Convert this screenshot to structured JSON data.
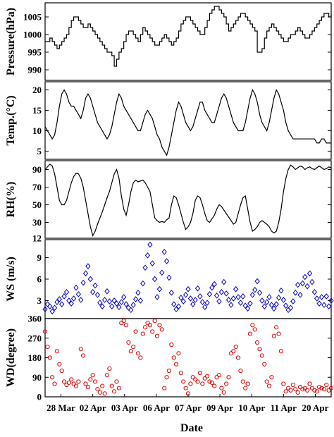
{
  "chart_data": [
    {
      "type": "line",
      "ylabel": "Pressure(hPa)",
      "ylim": [
        987,
        1009
      ],
      "yticks": [
        990,
        995,
        1000,
        1005
      ],
      "color": "#000000",
      "step": true,
      "x": [
        0,
        3,
        6,
        9,
        12,
        15,
        18,
        21,
        24,
        27,
        30,
        33,
        36,
        39,
        42,
        45,
        48,
        51,
        54,
        57,
        60,
        63,
        66,
        69,
        72,
        75,
        78,
        81,
        84,
        87,
        90,
        93,
        96,
        99,
        102,
        105,
        108,
        111,
        114,
        117,
        120,
        123,
        126,
        129,
        132,
        135,
        138,
        141,
        144,
        147,
        150,
        153,
        156,
        159,
        162,
        165,
        168,
        171,
        174,
        177,
        180,
        183,
        186,
        189,
        192,
        195,
        198,
        201,
        204,
        207,
        210,
        213,
        216,
        219,
        222,
        225,
        228,
        231,
        234,
        237,
        240,
        243,
        246,
        249,
        252,
        255,
        258,
        261,
        264,
        267,
        270,
        273,
        276,
        279,
        282,
        285,
        288,
        291,
        294,
        297,
        300,
        303,
        306,
        309,
        312,
        315,
        318,
        321,
        324,
        327,
        330,
        333,
        336,
        339,
        342,
        345,
        348,
        351,
        354,
        357,
        360
      ],
      "y": [
        998,
        998,
        999,
        998,
        997,
        996,
        997,
        998,
        999,
        1000,
        1002,
        1004,
        1005,
        1005,
        1004,
        1003,
        1002,
        1002,
        1003,
        1002,
        1001,
        1000,
        999,
        998,
        997,
        996,
        995,
        995,
        994,
        991,
        993,
        995,
        996,
        998,
        1000,
        1001,
        1001,
        1000,
        999,
        998,
        1000,
        1002,
        1001,
        1000,
        999,
        998,
        997,
        997,
        998,
        999,
        1000,
        999,
        998,
        997,
        998,
        999,
        1001,
        1003,
        1004,
        1005,
        1005,
        1004,
        1003,
        1002,
        1001,
        1000,
        1000,
        1002,
        1004,
        1006,
        1007,
        1008,
        1008,
        1007,
        1006,
        1005,
        1003,
        1001,
        1002,
        1003,
        1004,
        1005,
        1006,
        1006,
        1005,
        1004,
        1003,
        1002,
        1001,
        995,
        995,
        996,
        999,
        1001,
        1002,
        1003,
        1002,
        1001,
        1000,
        999,
        998,
        998,
        999,
        1000,
        1000,
        1001,
        1002,
        1001,
        1000,
        999,
        999,
        1000,
        1001,
        1002,
        1003,
        1004,
        1005,
        1006,
        1006,
        1005,
        1006
      ]
    },
    {
      "type": "line",
      "ylabel": "Temp.(°C)",
      "ylim": [
        3,
        22
      ],
      "yticks": [
        5,
        10,
        15,
        20
      ],
      "color": "#000000",
      "x": [
        0,
        3,
        6,
        9,
        12,
        15,
        18,
        21,
        24,
        27,
        30,
        33,
        36,
        39,
        42,
        45,
        48,
        51,
        54,
        57,
        60,
        63,
        66,
        69,
        72,
        75,
        78,
        81,
        84,
        87,
        90,
        93,
        96,
        99,
        102,
        105,
        108,
        111,
        114,
        117,
        120,
        123,
        126,
        129,
        132,
        135,
        138,
        141,
        144,
        147,
        150,
        153,
        156,
        159,
        162,
        165,
        168,
        171,
        174,
        177,
        180,
        183,
        186,
        189,
        192,
        195,
        198,
        201,
        204,
        207,
        210,
        213,
        216,
        219,
        222,
        225,
        228,
        231,
        234,
        237,
        240,
        243,
        246,
        249,
        252,
        255,
        258,
        261,
        264,
        267,
        270,
        273,
        276,
        279,
        282,
        285,
        288,
        291,
        294,
        297,
        300,
        303,
        306,
        309,
        312,
        315,
        318,
        321,
        324,
        327,
        330,
        333,
        336,
        339,
        342,
        345,
        348,
        351,
        354,
        357,
        360
      ],
      "y": [
        11,
        10,
        9,
        8,
        9,
        12,
        16,
        19,
        20,
        19,
        17,
        16,
        16,
        15,
        14,
        13,
        15,
        18,
        19,
        18,
        16,
        14,
        12,
        11,
        10,
        9,
        8,
        9,
        11,
        14,
        17,
        19,
        18,
        16,
        15,
        14,
        13,
        12,
        11,
        10,
        10,
        12,
        14,
        15,
        14,
        13,
        11,
        9,
        8,
        6,
        5,
        4,
        6,
        9,
        12,
        15,
        17,
        16,
        14,
        12,
        11,
        10,
        11,
        13,
        15,
        17,
        17,
        15,
        14,
        13,
        12,
        12,
        14,
        16,
        18,
        19,
        18,
        16,
        14,
        12,
        11,
        10,
        10,
        10,
        12,
        15,
        18,
        20,
        19,
        17,
        14,
        12,
        11,
        10,
        12,
        15,
        18,
        20,
        19,
        17,
        15,
        12,
        10,
        9,
        8,
        8,
        8,
        8,
        8,
        8,
        8,
        8,
        8,
        8,
        7,
        7,
        8,
        8,
        7,
        7,
        7
      ]
    },
    {
      "type": "line",
      "ylabel": "RH(%)",
      "ylim": [
        12,
        100
      ],
      "yticks": [
        12,
        30,
        50,
        70,
        90
      ],
      "color": "#000000",
      "x": [
        0,
        3,
        6,
        9,
        12,
        15,
        18,
        21,
        24,
        27,
        30,
        33,
        36,
        39,
        42,
        45,
        48,
        51,
        54,
        57,
        60,
        63,
        66,
        69,
        72,
        75,
        78,
        81,
        84,
        87,
        90,
        93,
        96,
        99,
        102,
        105,
        108,
        111,
        114,
        117,
        120,
        123,
        126,
        129,
        132,
        135,
        138,
        141,
        144,
        147,
        150,
        153,
        156,
        159,
        162,
        165,
        168,
        171,
        174,
        177,
        180,
        183,
        186,
        189,
        192,
        195,
        198,
        201,
        204,
        207,
        210,
        213,
        216,
        219,
        222,
        225,
        228,
        231,
        234,
        237,
        240,
        243,
        246,
        249,
        252,
        255,
        258,
        261,
        264,
        267,
        270,
        273,
        276,
        279,
        282,
        285,
        288,
        291,
        294,
        297,
        300,
        303,
        306,
        309,
        312,
        315,
        318,
        321,
        324,
        327,
        330,
        333,
        336,
        339,
        342,
        345,
        348,
        351,
        354,
        357,
        360
      ],
      "y": [
        90,
        93,
        96,
        94,
        85,
        70,
        55,
        50,
        50,
        55,
        65,
        75,
        82,
        86,
        85,
        80,
        70,
        55,
        40,
        25,
        15,
        20,
        28,
        35,
        42,
        50,
        58,
        65,
        75,
        85,
        90,
        80,
        60,
        45,
        38,
        50,
        65,
        75,
        78,
        76,
        77,
        78,
        75,
        70,
        65,
        50,
        35,
        32,
        30,
        31,
        30,
        33,
        35,
        50,
        60,
        58,
        50,
        40,
        30,
        22,
        25,
        30,
        40,
        55,
        60,
        58,
        50,
        40,
        32,
        30,
        34,
        38,
        45,
        50,
        48,
        44,
        40,
        36,
        32,
        28,
        30,
        40,
        50,
        58,
        60,
        45,
        30,
        20,
        22,
        25,
        30,
        32,
        30,
        28,
        25,
        20,
        18,
        20,
        30,
        45,
        65,
        80,
        90,
        95,
        93,
        90,
        92,
        94,
        93,
        90,
        92,
        93,
        91,
        90,
        92,
        94,
        92,
        90,
        91,
        93,
        92
      ]
    },
    {
      "type": "scatter",
      "ylabel": "WS (m/s)",
      "ylim": [
        0.5,
        11.5
      ],
      "yticks": [
        3,
        6,
        9
      ],
      "color": "#0000cc",
      "marker": "diamond",
      "x": [
        0,
        3,
        6,
        9,
        12,
        15,
        18,
        21,
        24,
        27,
        30,
        33,
        36,
        39,
        42,
        45,
        48,
        51,
        54,
        57,
        60,
        63,
        66,
        69,
        72,
        75,
        78,
        81,
        84,
        87,
        90,
        93,
        96,
        99,
        102,
        105,
        108,
        111,
        114,
        117,
        120,
        123,
        126,
        129,
        132,
        135,
        138,
        141,
        144,
        147,
        150,
        153,
        156,
        159,
        162,
        165,
        168,
        171,
        174,
        177,
        180,
        183,
        186,
        189,
        192,
        195,
        198,
        201,
        204,
        207,
        210,
        213,
        216,
        219,
        222,
        225,
        228,
        231,
        234,
        237,
        240,
        243,
        246,
        249,
        252,
        255,
        258,
        261,
        264,
        267,
        270,
        273,
        276,
        279,
        282,
        285,
        288,
        291,
        294,
        297,
        300,
        303,
        306,
        309,
        312,
        315,
        318,
        321,
        324,
        327,
        330,
        333,
        336,
        339,
        342,
        345,
        348,
        351,
        354,
        357,
        360
      ],
      "y": [
        1.8,
        2.5,
        2.2,
        1.5,
        2.0,
        2.8,
        3.2,
        2.5,
        3.6,
        4.2,
        3.0,
        2.6,
        3.3,
        4.8,
        3.9,
        3.1,
        5.5,
        6.8,
        7.8,
        6.0,
        4.2,
        5.1,
        3.8,
        2.7,
        2.2,
        3.1,
        4.3,
        2.9,
        2.2,
        3.0,
        2.6,
        2.1,
        2.8,
        3.5,
        2.5,
        2.0,
        1.7,
        2.4,
        3.2,
        4.1,
        3.0,
        5.4,
        7.6,
        9.3,
        10.8,
        8.2,
        6.0,
        3.5,
        4.6,
        6.9,
        9.8,
        8.5,
        6.2,
        4.1,
        2.5,
        1.8,
        2.2,
        3.4,
        2.9,
        3.8,
        4.6,
        3.3,
        2.5,
        3.1,
        4.7,
        3.6,
        2.8,
        2.1,
        2.7,
        3.9,
        4.8,
        5.3,
        3.7,
        2.9,
        4.2,
        5.6,
        4.0,
        3.1,
        2.4,
        3.3,
        4.6,
        3.5,
        2.7,
        3.6,
        2.3,
        1.9,
        2.6,
        3.8,
        4.5,
        5.7,
        4.1,
        3.0,
        2.2,
        2.8,
        3.5,
        2.4,
        1.9,
        2.5,
        3.4,
        4.4,
        3.1,
        2.3,
        1.7,
        2.0,
        2.9,
        4.1,
        5.2,
        3.8,
        5.4,
        6.3,
        5.0,
        6.8,
        5.6,
        4.2,
        3.3,
        2.6,
        3.5,
        2.4,
        3.6,
        2.2,
        3.0
      ]
    },
    {
      "type": "scatter",
      "ylabel": "WD(degree)",
      "ylim": [
        0,
        360
      ],
      "yticks": [
        0,
        90,
        180,
        270,
        360
      ],
      "color": "#dd0000",
      "marker": "circle",
      "x": [
        0,
        3,
        6,
        9,
        12,
        15,
        18,
        21,
        24,
        27,
        30,
        33,
        36,
        39,
        42,
        45,
        48,
        51,
        54,
        57,
        60,
        63,
        66,
        69,
        72,
        75,
        78,
        81,
        84,
        87,
        90,
        93,
        96,
        99,
        102,
        105,
        108,
        111,
        114,
        117,
        120,
        123,
        126,
        129,
        132,
        135,
        138,
        141,
        144,
        147,
        150,
        153,
        156,
        159,
        162,
        165,
        168,
        171,
        174,
        177,
        180,
        183,
        186,
        189,
        192,
        195,
        198,
        201,
        204,
        207,
        210,
        213,
        216,
        219,
        222,
        225,
        228,
        231,
        234,
        237,
        240,
        243,
        246,
        249,
        252,
        255,
        258,
        261,
        264,
        267,
        270,
        273,
        276,
        279,
        282,
        285,
        288,
        291,
        294,
        297,
        300,
        303,
        306,
        309,
        312,
        315,
        318,
        321,
        324,
        327,
        330,
        333,
        336,
        339,
        342,
        345,
        348,
        351,
        354,
        357,
        360
      ],
      "y": [
        300,
        230,
        180,
        90,
        60,
        210,
        150,
        120,
        70,
        55,
        65,
        80,
        60,
        50,
        70,
        220,
        190,
        60,
        45,
        80,
        100,
        70,
        35,
        20,
        50,
        15,
        100,
        130,
        50,
        25,
        70,
        40,
        340,
        350,
        330,
        250,
        210,
        230,
        300,
        200,
        180,
        290,
        320,
        340,
        330,
        300,
        350,
        280,
        330,
        310,
        40,
        90,
        120,
        240,
        180,
        150,
        200,
        110,
        70,
        40,
        15,
        60,
        90,
        80,
        70,
        110,
        60,
        85,
        95,
        70,
        65,
        50,
        90,
        100,
        40,
        20,
        60,
        90,
        200,
        210,
        230,
        180,
        120,
        70,
        40,
        60,
        290,
        330,
        310,
        250,
        220,
        190,
        150,
        70,
        50,
        90,
        280,
        320,
        290,
        210,
        60,
        25,
        40,
        30,
        55,
        35,
        20,
        45,
        35,
        40,
        30,
        60,
        40,
        30,
        25,
        45,
        40,
        35,
        55,
        30,
        40
      ]
    }
  ],
  "xaxis": {
    "label": "Date",
    "tick_labels": [
      "28 Mar",
      "02 Apr",
      "03 Apr",
      "06 Apr",
      "07 Apr",
      "09 Apr",
      "10 Apr",
      "11 Apr",
      "20 Apr"
    ]
  }
}
